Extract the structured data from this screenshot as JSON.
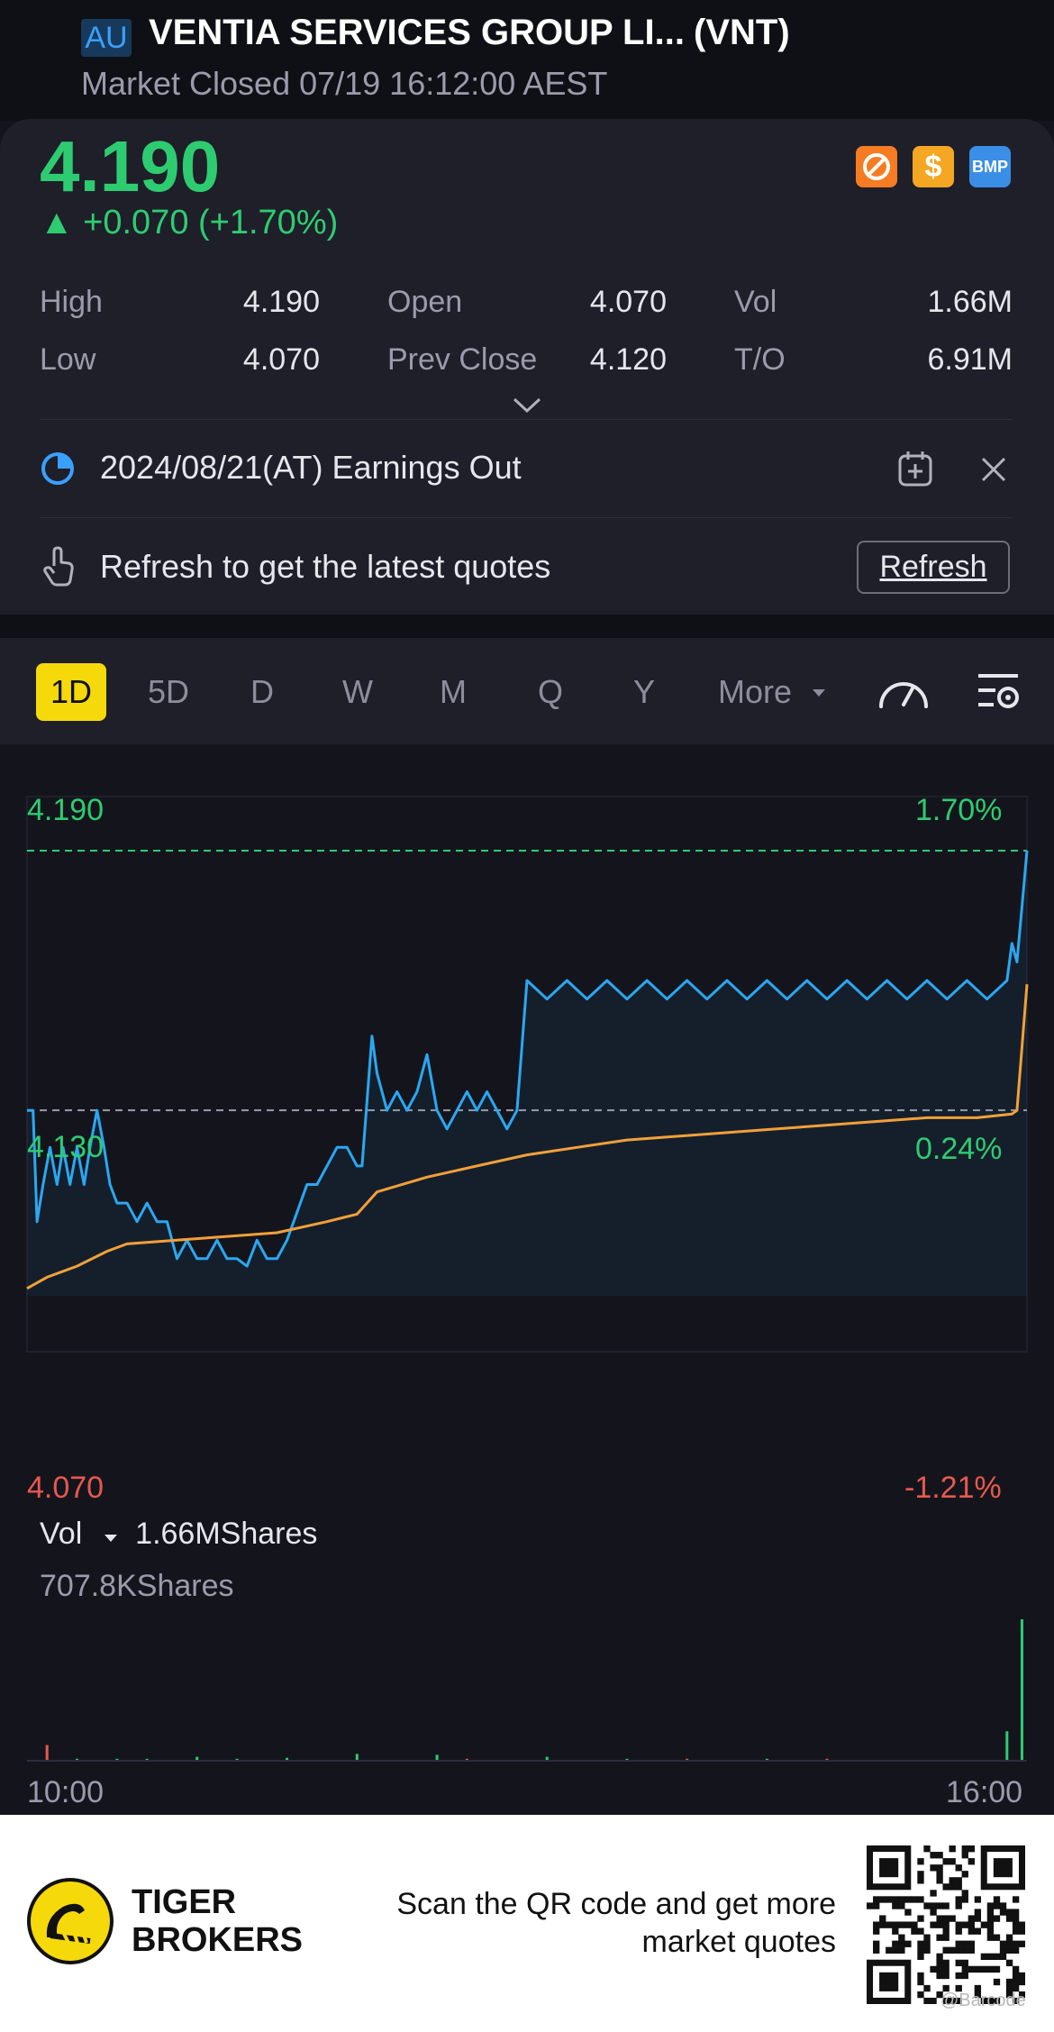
{
  "header": {
    "exchange_badge": "AU",
    "stock_name": "VENTIA SERVICES GROUP LI...",
    "ticker": "(VNT)",
    "market_status": "Market Closed 07/19 16:12:00 AEST"
  },
  "quote": {
    "price": "4.190",
    "change": "▲ +0.070 (+1.70%)",
    "badges": {
      "b2": "$",
      "b3": "BMP"
    },
    "stats": {
      "high_label": "High",
      "high": "4.190",
      "low_label": "Low",
      "low": "4.070",
      "open_label": "Open",
      "open": "4.070",
      "prev_close_label": "Prev Close",
      "prev_close": "4.120",
      "vol_label": "Vol",
      "vol": "1.66M",
      "to_label": "T/O",
      "to": "6.91M"
    }
  },
  "notices": {
    "earnings": "2024/08/21(AT) Earnings Out",
    "refresh_hint": "Refresh to get the latest quotes",
    "refresh_button": "Refresh"
  },
  "tabs": {
    "items": [
      "1D",
      "5D",
      "D",
      "W",
      "M",
      "Q",
      "Y"
    ],
    "more": "More",
    "active": "1D"
  },
  "chart_labels": {
    "y_top": "4.190",
    "pct_top": "1.70%",
    "y_mid": "4.130",
    "pct_mid": "0.24%",
    "y_bottom": "4.070",
    "pct_bottom": "-1.21%",
    "vol_label": "Vol",
    "vol_total": "1.66MShares",
    "vol_scale": "707.8KShares",
    "time_start": "10:00",
    "time_end": "16:00"
  },
  "chart_data": {
    "type": "line",
    "ylim": [
      4.07,
      4.19
    ],
    "prev_close": 4.12,
    "high": 4.19,
    "x_range": [
      "10:00",
      "16:00"
    ],
    "series": [],
    "price_line": [
      [
        0,
        4.12
      ],
      [
        0.006,
        4.12
      ],
      [
        0.01,
        4.09
      ],
      [
        0.016,
        4.1
      ],
      [
        0.023,
        4.11
      ],
      [
        0.03,
        4.1
      ],
      [
        0.036,
        4.11
      ],
      [
        0.043,
        4.1
      ],
      [
        0.05,
        4.11
      ],
      [
        0.057,
        4.1
      ],
      [
        0.063,
        4.11
      ],
      [
        0.07,
        4.12
      ],
      [
        0.077,
        4.11
      ],
      [
        0.083,
        4.1
      ],
      [
        0.09,
        4.095
      ],
      [
        0.1,
        4.095
      ],
      [
        0.11,
        4.09
      ],
      [
        0.12,
        4.095
      ],
      [
        0.13,
        4.09
      ],
      [
        0.14,
        4.09
      ],
      [
        0.15,
        4.08
      ],
      [
        0.16,
        4.085
      ],
      [
        0.17,
        4.08
      ],
      [
        0.18,
        4.08
      ],
      [
        0.19,
        4.085
      ],
      [
        0.2,
        4.08
      ],
      [
        0.21,
        4.08
      ],
      [
        0.22,
        4.078
      ],
      [
        0.23,
        4.085
      ],
      [
        0.24,
        4.08
      ],
      [
        0.25,
        4.08
      ],
      [
        0.26,
        4.085
      ],
      [
        0.28,
        4.1
      ],
      [
        0.29,
        4.1
      ],
      [
        0.3,
        4.105
      ],
      [
        0.31,
        4.11
      ],
      [
        0.32,
        4.11
      ],
      [
        0.33,
        4.105
      ],
      [
        0.335,
        4.105
      ],
      [
        0.345,
        4.14
      ],
      [
        0.35,
        4.13
      ],
      [
        0.36,
        4.12
      ],
      [
        0.37,
        4.125
      ],
      [
        0.38,
        4.12
      ],
      [
        0.39,
        4.125
      ],
      [
        0.4,
        4.135
      ],
      [
        0.41,
        4.12
      ],
      [
        0.42,
        4.115
      ],
      [
        0.43,
        4.12
      ],
      [
        0.44,
        4.125
      ],
      [
        0.45,
        4.12
      ],
      [
        0.46,
        4.125
      ],
      [
        0.47,
        4.12
      ],
      [
        0.48,
        4.115
      ],
      [
        0.49,
        4.12
      ],
      [
        0.5,
        4.155
      ],
      [
        0.52,
        4.15
      ],
      [
        0.54,
        4.155
      ],
      [
        0.56,
        4.15
      ],
      [
        0.58,
        4.155
      ],
      [
        0.6,
        4.15
      ],
      [
        0.62,
        4.155
      ],
      [
        0.64,
        4.15
      ],
      [
        0.66,
        4.155
      ],
      [
        0.68,
        4.15
      ],
      [
        0.7,
        4.155
      ],
      [
        0.72,
        4.15
      ],
      [
        0.74,
        4.155
      ],
      [
        0.76,
        4.15
      ],
      [
        0.78,
        4.155
      ],
      [
        0.8,
        4.15
      ],
      [
        0.82,
        4.155
      ],
      [
        0.84,
        4.15
      ],
      [
        0.86,
        4.155
      ],
      [
        0.88,
        4.15
      ],
      [
        0.9,
        4.155
      ],
      [
        0.92,
        4.15
      ],
      [
        0.94,
        4.155
      ],
      [
        0.96,
        4.15
      ],
      [
        0.98,
        4.155
      ],
      [
        0.985,
        4.165
      ],
      [
        0.99,
        4.16
      ],
      [
        0.995,
        4.175
      ],
      [
        1,
        4.19
      ]
    ],
    "avg_line": [
      [
        0,
        4.072
      ],
      [
        0.02,
        4.075
      ],
      [
        0.05,
        4.078
      ],
      [
        0.08,
        4.082
      ],
      [
        0.1,
        4.084
      ],
      [
        0.15,
        4.085
      ],
      [
        0.2,
        4.086
      ],
      [
        0.25,
        4.087
      ],
      [
        0.3,
        4.09
      ],
      [
        0.33,
        4.092
      ],
      [
        0.35,
        4.098
      ],
      [
        0.4,
        4.102
      ],
      [
        0.45,
        4.105
      ],
      [
        0.5,
        4.108
      ],
      [
        0.55,
        4.11
      ],
      [
        0.6,
        4.112
      ],
      [
        0.65,
        4.113
      ],
      [
        0.7,
        4.114
      ],
      [
        0.75,
        4.115
      ],
      [
        0.8,
        4.116
      ],
      [
        0.85,
        4.117
      ],
      [
        0.9,
        4.118
      ],
      [
        0.95,
        4.118
      ],
      [
        0.985,
        4.119
      ],
      [
        0.99,
        4.12
      ],
      [
        1,
        4.154
      ]
    ],
    "volume_bars": [
      [
        0.02,
        0.08,
        "down"
      ],
      [
        0.05,
        0.01,
        "up"
      ],
      [
        0.09,
        0.01,
        "up"
      ],
      [
        0.12,
        0.01,
        "up"
      ],
      [
        0.17,
        0.02,
        "up"
      ],
      [
        0.21,
        0.01,
        "up"
      ],
      [
        0.26,
        0.015,
        "up"
      ],
      [
        0.33,
        0.035,
        "up"
      ],
      [
        0.41,
        0.03,
        "up"
      ],
      [
        0.44,
        0.01,
        "down"
      ],
      [
        0.52,
        0.02,
        "up"
      ],
      [
        0.6,
        0.01,
        "up"
      ],
      [
        0.66,
        0.01,
        "down"
      ],
      [
        0.74,
        0.01,
        "up"
      ],
      [
        0.8,
        0.01,
        "down"
      ],
      [
        0.98,
        0.15,
        "up"
      ],
      [
        0.995,
        0.72,
        "up"
      ]
    ]
  },
  "footer": {
    "brand_line1": "TIGER",
    "brand_line2": "BROKERS",
    "scan_line1": "Scan the QR code and get more",
    "scan_line2": "market quotes",
    "watermark": "@Barcode"
  },
  "colors": {
    "up": "#2ecc71",
    "down": "#e8584f",
    "price_line": "#2aa8f2",
    "avg_line": "#f2a03a",
    "highlight": "#f5d90a"
  }
}
